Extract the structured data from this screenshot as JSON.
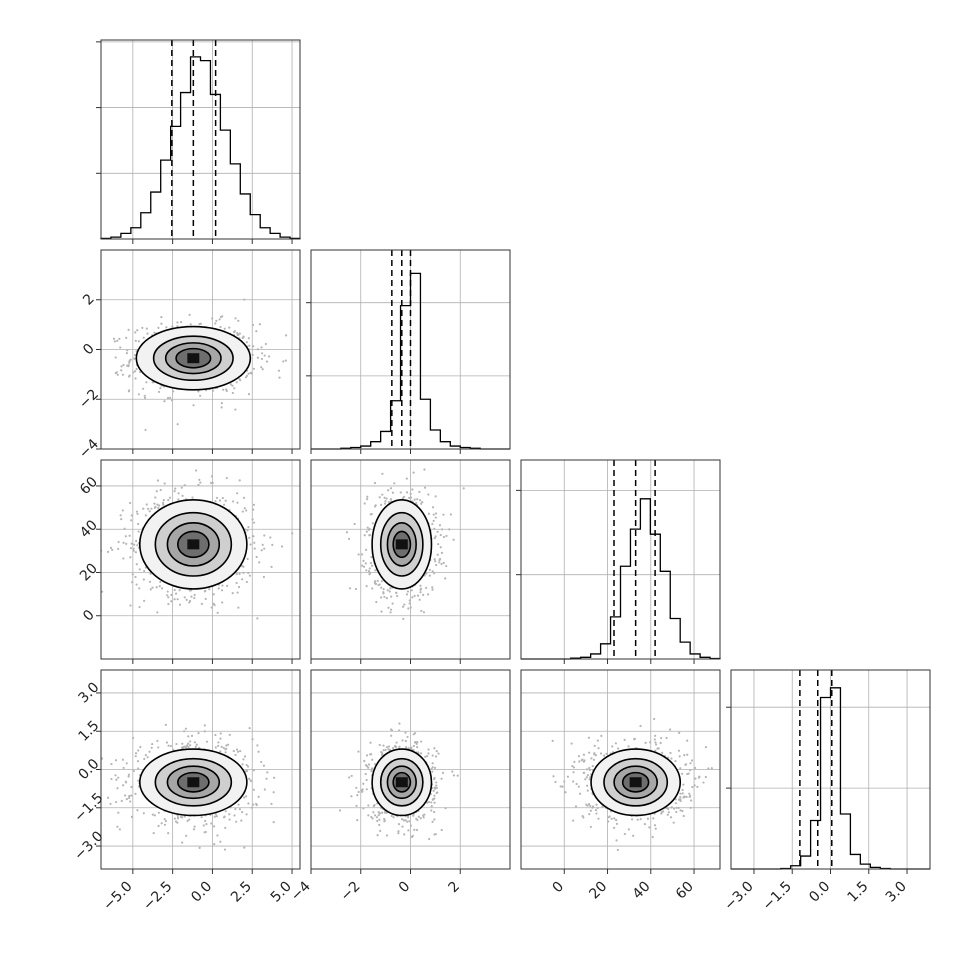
{
  "chart_data": {
    "type": "corner",
    "parameters": [
      {
        "range": [
          -7,
          5.5
        ],
        "ticks": [
          -5,
          -2.5,
          0,
          2.5,
          5
        ],
        "tick_labels": [
          "−5.0",
          "−2.5",
          "0.0",
          "2.5",
          "5.0"
        ]
      },
      {
        "range": [
          -4,
          4
        ],
        "ticks": [
          -4,
          -2,
          0,
          2
        ],
        "tick_labels": [
          "−4",
          "−2",
          "0",
          "2"
        ]
      },
      {
        "range": [
          -20,
          72
        ],
        "ticks": [
          0,
          20,
          40,
          60
        ],
        "tick_labels": [
          "0",
          "20",
          "40",
          "60"
        ]
      },
      {
        "range": [
          -3.9,
          3.9
        ],
        "ticks": [
          -3,
          -1.5,
          0,
          1.5,
          3
        ],
        "tick_labels": [
          "−3.0",
          "−1.5",
          "0.0",
          "1.5",
          "3.0"
        ]
      }
    ],
    "histograms": [
      {
        "edges": [
          -7.0,
          -6.375,
          -5.75,
          -5.125,
          -4.5,
          -3.875,
          -3.25,
          -2.625,
          -2.0,
          -1.375,
          -0.75,
          -0.125,
          0.5,
          1.125,
          1.75,
          2.375,
          3.0,
          3.625,
          4.25,
          4.875,
          5.5
        ],
        "counts": [
          0.3,
          1,
          3,
          6,
          14,
          25,
          42,
          60,
          78,
          97,
          95,
          77,
          58,
          40,
          24,
          13,
          6,
          3,
          1,
          0.3
        ],
        "ymax": 106,
        "quantiles": [
          -2.55,
          -1.2,
          0.2
        ]
      },
      {
        "edges": [
          -4.0,
          -3.6,
          -3.2,
          -2.8,
          -2.4,
          -2.0,
          -1.6,
          -1.2,
          -0.8,
          -0.4,
          0.0,
          0.4,
          0.8,
          1.2,
          1.6,
          2.0,
          2.4,
          2.8,
          3.2,
          3.6,
          4.0
        ],
        "counts": [
          0,
          0,
          0,
          0.5,
          1,
          2,
          5,
          12,
          33,
          98,
          120,
          34,
          13,
          5,
          2,
          1,
          0.5,
          0,
          0,
          0
        ],
        "ymax": 136,
        "quantiles": [
          -0.75,
          -0.35,
          0.0
        ]
      },
      {
        "edges": [
          -20.0,
          -15.4,
          -10.8,
          -6.2,
          -1.6,
          3.0,
          7.6,
          12.2,
          16.8,
          21.4,
          26.0,
          30.6,
          35.2,
          39.8,
          44.4,
          49.0,
          53.6,
          58.2,
          62.8,
          67.4,
          72.0
        ],
        "counts": [
          0,
          0,
          0,
          0,
          0,
          0.5,
          1,
          3,
          9,
          25,
          55,
          77,
          95,
          74,
          52,
          24,
          10,
          3,
          1,
          0.3
        ],
        "ymax": 118,
        "quantiles": [
          23.0,
          33.0,
          42.0
        ]
      },
      {
        "edges": [
          -3.9,
          -3.51,
          -3.12,
          -2.73,
          -2.34,
          -1.95,
          -1.56,
          -1.17,
          -0.78,
          -0.39,
          0.0,
          0.39,
          0.78,
          1.17,
          1.56,
          1.95,
          2.34,
          2.73,
          3.12,
          3.51,
          3.9
        ],
        "counts": [
          0,
          0,
          0,
          0,
          0,
          0.3,
          2,
          8,
          30,
          106,
          112,
          34,
          9,
          3,
          1,
          0.3,
          0,
          0,
          0,
          0
        ],
        "ymax": 123,
        "quantiles": [
          -1.2,
          -0.5,
          0.05
        ]
      }
    ],
    "joint": [
      {
        "row": 1,
        "col": 0,
        "center": [
          -1.2,
          -0.35
        ],
        "sigma": [
          1.55,
          0.55
        ],
        "levels": [
          1,
          1.6,
          2.3,
          3.3
        ]
      },
      {
        "row": 2,
        "col": 0,
        "center": [
          -1.2,
          33.0
        ],
        "sigma": [
          1.55,
          9.5
        ],
        "levels": [
          0.9,
          1.5,
          2.2,
          3.1
        ]
      },
      {
        "row": 2,
        "col": 1,
        "center": [
          -0.35,
          33.0
        ],
        "sigma": [
          0.55,
          9.5
        ],
        "levels": [
          0.9,
          1.5,
          2.2,
          3.1
        ]
      },
      {
        "row": 3,
        "col": 0,
        "center": [
          -1.2,
          -0.5
        ],
        "sigma": [
          1.55,
          0.6
        ],
        "levels": [
          0.9,
          1.5,
          2.2,
          3.1
        ]
      },
      {
        "row": 3,
        "col": 1,
        "center": [
          -0.35,
          -0.5
        ],
        "sigma": [
          0.55,
          0.6
        ],
        "levels": [
          0.9,
          1.5,
          2.2,
          3.1
        ]
      },
      {
        "row": 3,
        "col": 2,
        "center": [
          33.0,
          -0.5
        ],
        "sigma": [
          9.5,
          0.6
        ],
        "levels": [
          0.9,
          1.5,
          2.2,
          3.1
        ]
      }
    ],
    "grid": true,
    "title": "",
    "xlabel": "",
    "ylabel": ""
  }
}
